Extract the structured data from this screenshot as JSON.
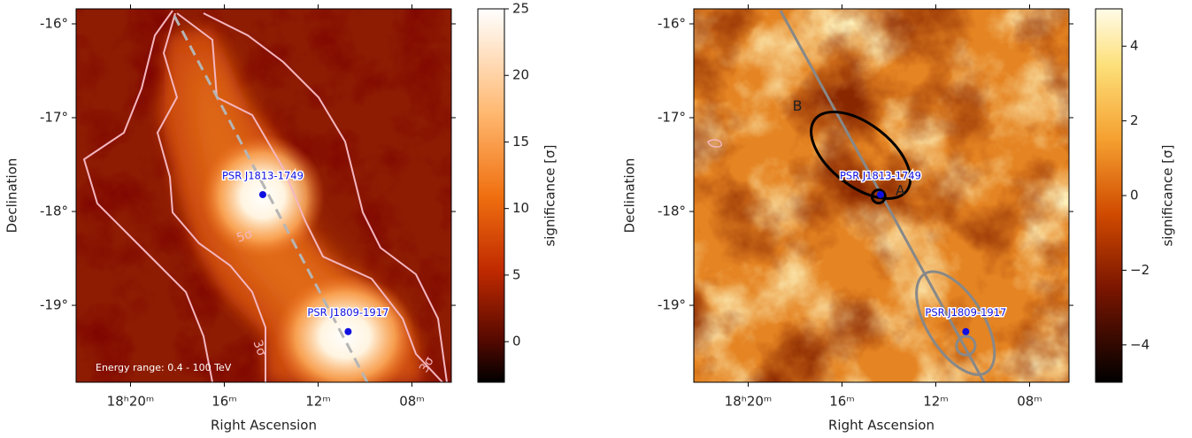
{
  "chart_data": [
    {
      "type": "heatmap",
      "xlabel": "Right Ascension",
      "ylabel": "Declination",
      "xlim": [
        275.58,
        271.58
      ],
      "ylim": [
        -19.82,
        -15.84
      ],
      "xticks": [
        {
          "value": 275,
          "label": "18ʰ20ᵐ"
        },
        {
          "value": 274,
          "label": "16ᵐ"
        },
        {
          "value": 273,
          "label": "12ᵐ"
        },
        {
          "value": 272,
          "label": "08ᵐ"
        }
      ],
      "yticks": [
        {
          "value": -16,
          "label": "-16°"
        },
        {
          "value": -17,
          "label": "-17°"
        },
        {
          "value": -18,
          "label": "-18°"
        },
        {
          "value": -19,
          "label": "-19°"
        }
      ],
      "colorbar": {
        "label": "significance [σ]",
        "clim": [
          -3.05,
          25
        ],
        "ticks": [
          0,
          5,
          10,
          15,
          20,
          25
        ]
      },
      "points": [
        {
          "name": "PSR J1813-1749",
          "x": 273.59,
          "y": -17.82
        },
        {
          "name": "PSR J1809-1917",
          "x": 272.68,
          "y": -19.28
        }
      ],
      "contour_labels": [
        "5σ",
        "3σ",
        "3σ"
      ],
      "annotation": "Energy range: 0.4 - 100 TeV"
    },
    {
      "type": "heatmap",
      "xlabel": "Right Ascension",
      "ylabel": "Declination",
      "xlim": [
        275.58,
        271.58
      ],
      "ylim": [
        -19.82,
        -15.84
      ],
      "xticks": [
        {
          "value": 275,
          "label": "18ʰ20ᵐ"
        },
        {
          "value": 274,
          "label": "16ᵐ"
        },
        {
          "value": 273,
          "label": "12ᵐ"
        },
        {
          "value": 272,
          "label": "08ᵐ"
        }
      ],
      "yticks": [
        {
          "value": -16,
          "label": "-16°"
        },
        {
          "value": -17,
          "label": "-17°"
        },
        {
          "value": -18,
          "label": "-18°"
        },
        {
          "value": -19,
          "label": "-19°"
        }
      ],
      "colorbar": {
        "label": "significance [σ]",
        "clim": [
          -5,
          5
        ],
        "ticks": [
          {
            "value": -4,
            "label": "−4"
          },
          {
            "value": -2,
            "label": "−2"
          },
          0,
          2,
          4
        ]
      },
      "points": [
        {
          "name": "PSR J1813-1749",
          "x": 273.59,
          "y": -17.82
        },
        {
          "name": "PSR J1809-1917",
          "x": 272.68,
          "y": -19.28
        }
      ],
      "sources": [
        {
          "label": "B",
          "color": "#000000",
          "x": 273.8,
          "y": -17.4,
          "a": 0.62,
          "b": 0.33,
          "angle": 38
        },
        {
          "label": "A",
          "color": "#000000",
          "x": 273.61,
          "y": -17.84,
          "a": 0.07,
          "b": 0.07,
          "angle": 0
        },
        {
          "color": "#888888",
          "x": 272.79,
          "y": -19.19,
          "a": 0.62,
          "b": 0.3,
          "angle": 58
        },
        {
          "color": "#888888",
          "x": 272.68,
          "y": -19.43,
          "a": 0.1,
          "b": 0.1,
          "angle": 0
        }
      ]
    }
  ]
}
